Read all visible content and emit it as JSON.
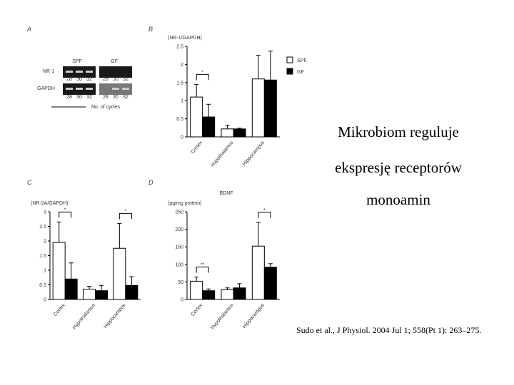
{
  "slide": {
    "title_lines": [
      "Mikrobiom reguluje",
      "ekspresję receptorów",
      "monoamin"
    ],
    "citation": "Sudo et al., J Physiol. 2004 Jul 1; 558(Pt 1): 263–275."
  },
  "panel_letters": [
    "A",
    "B",
    "C",
    "D"
  ],
  "panel_a": {
    "groups": [
      "SPF",
      "GF"
    ],
    "rows": [
      "NR-1",
      "GAPDH"
    ],
    "cycles": [
      "28",
      "30",
      "32"
    ],
    "axis_label": "No. of cycles"
  },
  "chart_data": [
    {
      "type": "bar",
      "ylabel": "(NR-1/GAPDH)",
      "categories": [
        "Cortex",
        "Hypothalamus",
        "Hippocampus"
      ],
      "series": [
        {
          "name": "SPF",
          "color": "#ffffff",
          "values": [
            1.1,
            0.22,
            1.6
          ],
          "errors": [
            0.35,
            0.1,
            0.65
          ]
        },
        {
          "name": "GF",
          "color": "#000000",
          "values": [
            0.55,
            0.22,
            1.57
          ],
          "errors": [
            0.35,
            0.02,
            0.8
          ]
        }
      ],
      "ylim": [
        0,
        2.5
      ],
      "yticks": [
        0,
        0.5,
        1,
        1.5,
        2,
        2.5
      ],
      "legend": true,
      "annotations": [
        {
          "text": "*",
          "category": "Cortex"
        }
      ]
    },
    {
      "type": "bar",
      "ylabel": "(NR-2A/GAPDH)",
      "categories": [
        "Cortex",
        "Hypothalamus",
        "Hippocampus"
      ],
      "series": [
        {
          "color": "#ffffff",
          "values": [
            1.95,
            0.35,
            1.75
          ],
          "errors": [
            0.7,
            0.1,
            0.85
          ]
        },
        {
          "color": "#000000",
          "values": [
            0.7,
            0.3,
            0.48
          ],
          "errors": [
            0.55,
            0.18,
            0.3
          ]
        }
      ],
      "ylim": [
        0,
        3
      ],
      "yticks": [
        0,
        0.5,
        1,
        1.5,
        2,
        2.5,
        3
      ],
      "legend": false,
      "annotations": [
        {
          "text": "*",
          "category": "Cortex"
        },
        {
          "text": "*",
          "category": "Hippocampus"
        }
      ]
    },
    {
      "type": "bar",
      "title": "BDNF",
      "ylabel": "(pg/mg protein)",
      "categories": [
        "Cortex",
        "Hypothalamus",
        "Hippocampus"
      ],
      "series": [
        {
          "color": "#ffffff",
          "values": [
            52,
            28,
            152
          ],
          "errors": [
            12,
            5,
            68
          ]
        },
        {
          "color": "#000000",
          "values": [
            25,
            33,
            92
          ],
          "errors": [
            5,
            12,
            10
          ]
        }
      ],
      "ylim": [
        0,
        250
      ],
      "yticks": [
        0,
        50,
        100,
        150,
        200,
        250
      ],
      "legend": false,
      "annotations": [
        {
          "text": "**",
          "category": "Cortex"
        },
        {
          "text": "*",
          "category": "Hippocampus"
        }
      ]
    }
  ]
}
